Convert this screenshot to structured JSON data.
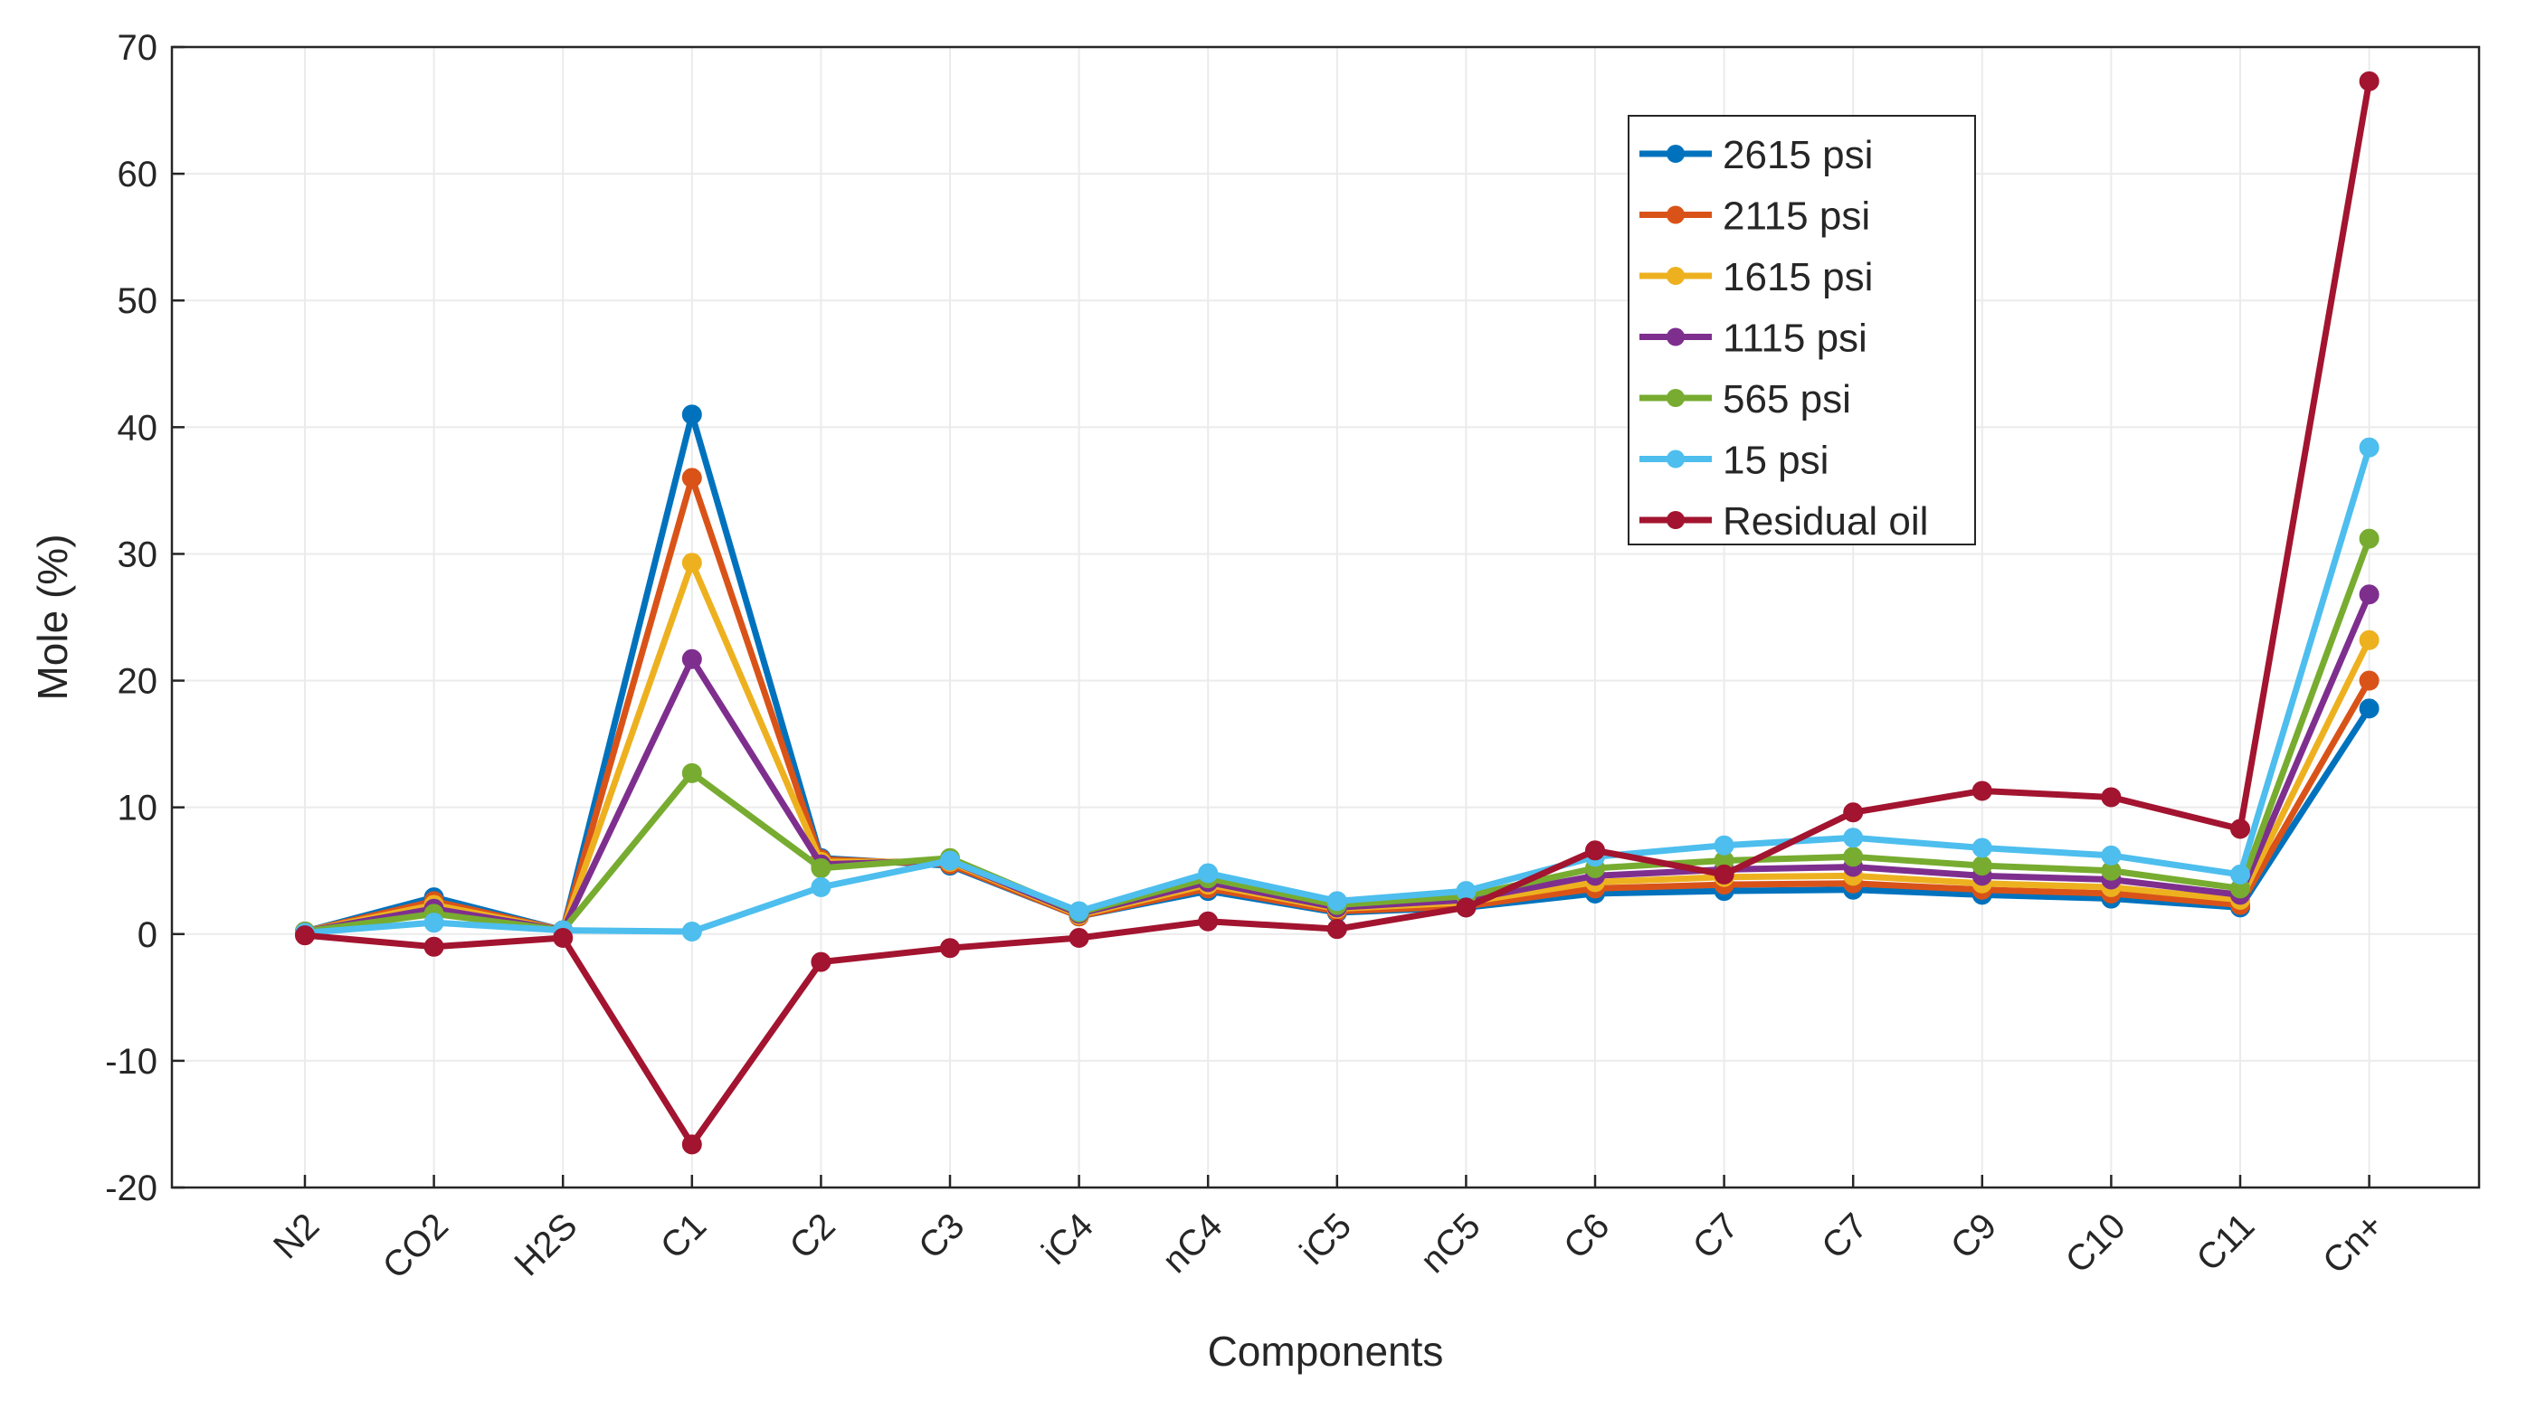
{
  "chart_data": {
    "type": "line",
    "title": "",
    "xlabel": "Components",
    "ylabel": "Mole (%)",
    "ylim": [
      -20,
      70
    ],
    "yticks": [
      -20,
      -10,
      0,
      10,
      20,
      30,
      40,
      50,
      60,
      70
    ],
    "grid": true,
    "legend_position": "top-right",
    "categories": [
      "N2",
      "CO2",
      "H2S",
      "C1",
      "C2",
      "C3",
      "iC4",
      "nC4",
      "iC5",
      "nC5",
      "C6",
      "C7",
      "C7",
      "C9",
      "C10",
      "C11",
      "Cn+"
    ],
    "series": [
      {
        "name": "2615 psi",
        "color": "#0072BD",
        "values": [
          0.2,
          2.9,
          0.3,
          41.0,
          6.0,
          5.4,
          1.4,
          3.4,
          1.7,
          2.1,
          3.2,
          3.4,
          3.5,
          3.1,
          2.8,
          2.1,
          17.8
        ]
      },
      {
        "name": "2115 psi",
        "color": "#D95319",
        "values": [
          0.2,
          2.6,
          0.3,
          36.0,
          5.9,
          5.5,
          1.4,
          3.6,
          1.8,
          2.2,
          3.6,
          3.9,
          4.0,
          3.5,
          3.2,
          2.3,
          20.0
        ]
      },
      {
        "name": "1615 psi",
        "color": "#EDB120",
        "values": [
          0.2,
          2.3,
          0.3,
          29.3,
          5.7,
          5.7,
          1.5,
          3.9,
          2.0,
          2.5,
          4.1,
          4.5,
          4.6,
          4.0,
          3.7,
          2.7,
          23.2
        ]
      },
      {
        "name": "1115 psi",
        "color": "#7E2F8E",
        "values": [
          0.2,
          2.0,
          0.3,
          21.7,
          5.5,
          5.8,
          1.6,
          4.1,
          2.1,
          2.7,
          4.6,
          5.1,
          5.3,
          4.6,
          4.3,
          3.1,
          26.8
        ]
      },
      {
        "name": "565 psi",
        "color": "#77AC30",
        "values": [
          0.2,
          1.6,
          0.3,
          12.7,
          5.2,
          6.0,
          1.7,
          4.4,
          2.3,
          3.0,
          5.2,
          5.8,
          6.1,
          5.4,
          5.0,
          3.6,
          31.2
        ]
      },
      {
        "name": "15 psi",
        "color": "#4DBEEE",
        "values": [
          0.1,
          0.9,
          0.3,
          0.2,
          3.7,
          5.8,
          1.8,
          4.8,
          2.6,
          3.4,
          6.1,
          7.0,
          7.6,
          6.8,
          6.2,
          4.7,
          38.4
        ]
      },
      {
        "name": "Residual oil",
        "color": "#A2142F",
        "values": [
          -0.1,
          -1.0,
          -0.3,
          -16.6,
          -2.2,
          -1.1,
          -0.3,
          1.0,
          0.4,
          2.1,
          6.6,
          4.7,
          9.6,
          11.3,
          10.8,
          8.3,
          67.3
        ]
      }
    ]
  }
}
